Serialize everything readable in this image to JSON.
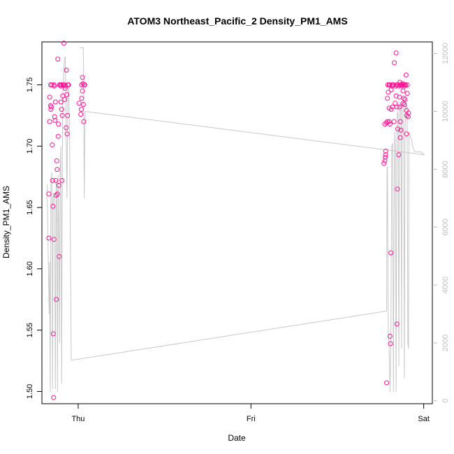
{
  "chart_data": {
    "type": "scatter",
    "title": "ATOM3 Northeast_Pacific_2 Density_PM1_AMS",
    "xlabel": "Date",
    "ylabel": "Density_PM1_AMS",
    "x_ticks": [
      "Thu",
      "Fri",
      "Sat"
    ],
    "y_ticks": [
      "1.50",
      "1.55",
      "1.60",
      "1.65",
      "1.70",
      "1.75"
    ],
    "y_right_ticks": [
      "0",
      "2000",
      "4000",
      "6000",
      "8000",
      "10000",
      "12000"
    ],
    "xlim": [
      -0.21,
      2.05
    ],
    "ylim": [
      1.49,
      1.785
    ],
    "y_right_lim": [
      -100,
      12400
    ],
    "colors": {
      "points": "#ff1493",
      "line": "#c8c8c8",
      "right_axis": "#c0c0c0",
      "axis": "#000000"
    },
    "series": [
      {
        "type": "scatter",
        "comment_unit": "x in days since Thu 00:00",
        "points": [
          [
            -0.17,
            1.661
          ],
          [
            -0.17,
            1.625
          ],
          [
            -0.165,
            1.72
          ],
          [
            -0.165,
            1.74
          ],
          [
            -0.16,
            1.733
          ],
          [
            -0.16,
            1.75
          ],
          [
            -0.158,
            1.73
          ],
          [
            -0.155,
            1.732
          ],
          [
            -0.152,
            1.75
          ],
          [
            -0.15,
            1.701
          ],
          [
            -0.148,
            1.672
          ],
          [
            -0.146,
            1.651
          ],
          [
            -0.144,
            1.547
          ],
          [
            -0.142,
            1.495
          ],
          [
            -0.14,
            1.624
          ],
          [
            -0.14,
            1.75
          ],
          [
            -0.138,
            1.749
          ],
          [
            -0.136,
            1.724
          ],
          [
            -0.134,
            1.721
          ],
          [
            -0.132,
            1.736
          ],
          [
            -0.13,
            1.672
          ],
          [
            -0.128,
            1.66
          ],
          [
            -0.126,
            1.575
          ],
          [
            -0.124,
            1.688
          ],
          [
            -0.122,
            1.681
          ],
          [
            -0.12,
            1.661
          ],
          [
            -0.118,
            1.771
          ],
          [
            -0.116,
            1.708
          ],
          [
            -0.114,
            1.718
          ],
          [
            -0.112,
            1.668
          ],
          [
            -0.11,
            1.61
          ],
          [
            -0.108,
            1.75
          ],
          [
            -0.105,
            1.75
          ],
          [
            -0.1,
            1.749
          ],
          [
            -0.1,
            1.736
          ],
          [
            -0.098,
            1.75
          ],
          [
            -0.096,
            1.73
          ],
          [
            -0.094,
            1.672
          ],
          [
            -0.092,
            1.725
          ],
          [
            -0.09,
            1.741
          ],
          [
            -0.088,
            1.75
          ],
          [
            -0.085,
            1.75
          ],
          [
            -0.083,
            1.784
          ],
          [
            -0.08,
            1.75
          ],
          [
            -0.078,
            1.738
          ],
          [
            -0.075,
            1.747
          ],
          [
            -0.072,
            1.749
          ],
          [
            -0.07,
            1.715
          ],
          [
            -0.068,
            1.762
          ],
          [
            -0.066,
            1.742
          ],
          [
            -0.064,
            1.71
          ],
          [
            -0.062,
            1.725
          ],
          [
            -0.06,
            1.75
          ],
          [
            -0.058,
            1.75
          ],
          [
            -0.056,
            1.75
          ],
          [
            0.005,
            1.735
          ],
          [
            0.015,
            1.726
          ],
          [
            0.018,
            1.73
          ],
          [
            0.02,
            1.739
          ],
          [
            0.02,
            1.75
          ],
          [
            0.025,
            1.745
          ],
          [
            0.025,
            1.756
          ],
          [
            0.028,
            1.751
          ],
          [
            0.03,
            1.734
          ],
          [
            0.032,
            1.72
          ],
          [
            0.035,
            1.75
          ],
          [
            0.038,
            1.75
          ],
          [
            1.77,
            1.686
          ],
          [
            1.775,
            1.688
          ],
          [
            1.778,
            1.691
          ],
          [
            1.78,
            1.693
          ],
          [
            1.78,
            1.696
          ],
          [
            1.775,
            1.718
          ],
          [
            1.785,
            1.719
          ],
          [
            1.79,
            1.72
          ],
          [
            1.785,
            1.507
          ],
          [
            1.79,
            1.739
          ],
          [
            1.792,
            1.75
          ],
          [
            1.795,
            1.744
          ],
          [
            1.8,
            1.75
          ],
          [
            1.8,
            1.731
          ],
          [
            1.8,
            1.72
          ],
          [
            1.805,
            1.718
          ],
          [
            1.805,
            1.75
          ],
          [
            1.805,
            1.545
          ],
          [
            1.808,
            1.539
          ],
          [
            1.81,
            1.613
          ],
          [
            1.812,
            1.746
          ],
          [
            1.812,
            1.73
          ],
          [
            1.815,
            1.749
          ],
          [
            1.818,
            1.75
          ],
          [
            1.82,
            1.75
          ],
          [
            1.82,
            1.732
          ],
          [
            1.822,
            1.75
          ],
          [
            1.825,
            1.75
          ],
          [
            1.828,
            1.72
          ],
          [
            1.83,
            1.768
          ],
          [
            1.835,
            1.735
          ],
          [
            1.838,
            1.749
          ],
          [
            1.84,
            1.741
          ],
          [
            1.84,
            1.776
          ],
          [
            1.842,
            1.75
          ],
          [
            1.845,
            1.732
          ],
          [
            1.845,
            1.555
          ],
          [
            1.848,
            1.665
          ],
          [
            1.85,
            1.75
          ],
          [
            1.85,
            1.714
          ],
          [
            1.855,
            1.693
          ],
          [
            1.855,
            1.749
          ],
          [
            1.86,
            1.732
          ],
          [
            1.86,
            1.74
          ],
          [
            1.862,
            1.75
          ],
          [
            1.865,
            1.72
          ],
          [
            1.865,
            1.707
          ],
          [
            1.868,
            1.713
          ],
          [
            1.87,
            1.75
          ],
          [
            1.872,
            1.749
          ],
          [
            1.875,
            1.75
          ],
          [
            1.878,
            1.751
          ],
          [
            1.88,
            1.735
          ],
          [
            1.88,
            1.745
          ],
          [
            1.882,
            1.75
          ],
          [
            1.885,
            1.739
          ],
          [
            1.888,
            1.734
          ],
          [
            1.89,
            1.75
          ],
          [
            1.89,
            1.749
          ],
          [
            1.892,
            1.738
          ],
          [
            1.895,
            1.75
          ],
          [
            1.898,
            1.758
          ],
          [
            1.9,
            1.71
          ],
          [
            1.9,
            1.729
          ],
          [
            1.902,
            1.725
          ],
          [
            1.905,
            1.75
          ],
          [
            1.905,
            1.743
          ],
          [
            1.91,
            1.724
          ],
          [
            1.912,
            1.727
          ],
          [
            1.862,
            1.752
          ]
        ]
      },
      {
        "type": "line",
        "axis": "right",
        "points": [
          [
            -0.18,
            7500
          ],
          [
            -0.168,
            3000
          ],
          [
            -0.165,
            4800
          ],
          [
            -0.162,
            300
          ],
          [
            -0.158,
            7500
          ],
          [
            -0.152,
            7900
          ],
          [
            -0.148,
            400
          ],
          [
            -0.145,
            7000
          ],
          [
            -0.14,
            7200
          ],
          [
            -0.136,
            6500
          ],
          [
            -0.132,
            400
          ],
          [
            -0.128,
            7500
          ],
          [
            -0.124,
            7600
          ],
          [
            -0.12,
            300
          ],
          [
            -0.116,
            7800
          ],
          [
            -0.112,
            6000
          ],
          [
            -0.108,
            2000
          ],
          [
            -0.104,
            8000
          ],
          [
            -0.1,
            8800
          ],
          [
            -0.096,
            600
          ],
          [
            -0.09,
            10500
          ],
          [
            -0.08,
            11800
          ],
          [
            -0.075,
            11900
          ],
          [
            -0.07,
            9500
          ],
          [
            -0.065,
            7000
          ],
          [
            -0.06,
            10500
          ],
          [
            -0.055,
            10800
          ],
          [
            -0.05,
            9300
          ],
          [
            -0.04,
            1400
          ],
          [
            1.785,
            3100
          ],
          [
            1.788,
            8000
          ],
          [
            1.79,
            8100
          ],
          [
            1.795,
            2500
          ],
          [
            1.8,
            1800
          ],
          [
            1.805,
            300
          ],
          [
            1.81,
            1800
          ],
          [
            1.815,
            8800
          ],
          [
            1.82,
            8900
          ],
          [
            1.825,
            300
          ],
          [
            1.828,
            6000
          ],
          [
            1.832,
            9300
          ],
          [
            1.836,
            8800
          ],
          [
            1.84,
            300
          ],
          [
            1.845,
            9000
          ],
          [
            1.848,
            10000
          ],
          [
            1.852,
            9900
          ],
          [
            1.856,
            1200
          ],
          [
            1.86,
            9500
          ],
          [
            1.864,
            10300
          ],
          [
            1.868,
            10200
          ],
          [
            1.872,
            1800
          ],
          [
            1.875,
            10200
          ],
          [
            1.88,
            10400
          ],
          [
            1.884,
            10100
          ],
          [
            1.888,
            800
          ],
          [
            1.892,
            9000
          ],
          [
            1.896,
            10400
          ],
          [
            1.9,
            10100
          ],
          [
            1.904,
            10200
          ],
          [
            1.908,
            2000
          ],
          [
            1.912,
            1800
          ],
          [
            1.915,
            9300
          ],
          [
            1.92,
            9200
          ],
          [
            1.925,
            9100
          ],
          [
            1.93,
            9000
          ],
          [
            1.935,
            8800
          ],
          [
            1.94,
            8700
          ],
          [
            1.945,
            8650
          ],
          [
            1.95,
            8600
          ],
          [
            1.955,
            8600
          ],
          [
            1.96,
            8600
          ],
          [
            1.965,
            8600
          ],
          [
            1.97,
            8600
          ],
          [
            1.975,
            8600
          ],
          [
            1.98,
            8600
          ],
          [
            1.985,
            8600
          ],
          [
            1.99,
            8550
          ],
          [
            1.995,
            8550
          ],
          [
            2.0,
            8500
          ],
          [
            2.005,
            8500
          ]
        ],
        "gap_segments": [
          [
            [
              -0.04,
              1400
            ],
            [
              1.785,
              3100
            ]
          ],
          [
            [
              0.01,
              12200
            ],
            [
              0.012,
              12200
            ],
            [
              0.02,
              12200
            ],
            [
              0.025,
              12200
            ],
            [
              0.03,
              12200
            ],
            [
              0.035,
              7000
            ],
            [
              0.04,
              10000
            ]
          ],
          [
            [
              0.04,
              10000
            ],
            [
              2.005,
              8500
            ]
          ]
        ]
      }
    ]
  }
}
